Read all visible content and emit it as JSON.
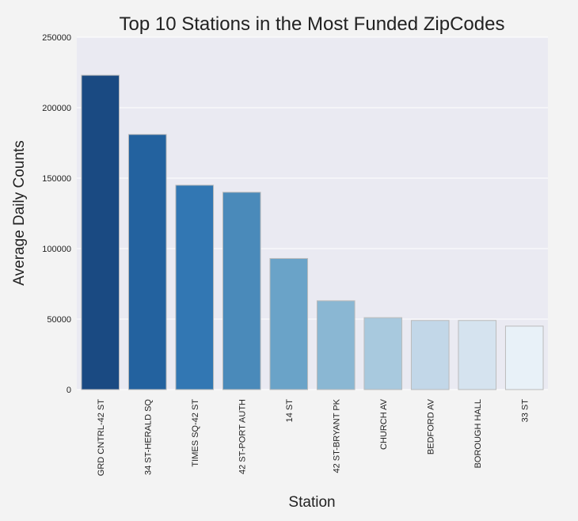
{
  "chart_data": {
    "type": "bar",
    "title": "Top 10 Stations in the Most Funded ZipCodes",
    "xlabel": "Station",
    "ylabel": "Average Daily Counts",
    "categories": [
      "GRD CNTRL-42 ST",
      "34 ST-HERALD SQ",
      "TIMES SQ-42 ST",
      "42 ST-PORT AUTH",
      "14 ST",
      "42 ST-BRYANT PK",
      "CHURCH AV",
      "BEDFORD AV",
      "BOROUGH HALL",
      "33 ST"
    ],
    "values": [
      223000,
      181000,
      145000,
      140000,
      93000,
      63000,
      51000,
      49000,
      49000,
      45000
    ],
    "ylim": [
      0,
      250000
    ],
    "yticks": [
      0,
      50000,
      100000,
      150000,
      200000,
      250000
    ],
    "ytick_labels": [
      "0",
      "50000",
      "100000",
      "150000",
      "200000",
      "250000"
    ],
    "grid": true,
    "legend": "none",
    "colors": [
      "#1a4a82",
      "#23629f",
      "#3277b3",
      "#4a8aba",
      "#6aa3c8",
      "#8ab7d3",
      "#a8c9de",
      "#c2d7e8",
      "#d5e3ef",
      "#e8f1f8"
    ],
    "plot_background": "#eaeaf2",
    "grid_color": "#ffffff",
    "bar_edge_color": "#bbbbbb"
  }
}
